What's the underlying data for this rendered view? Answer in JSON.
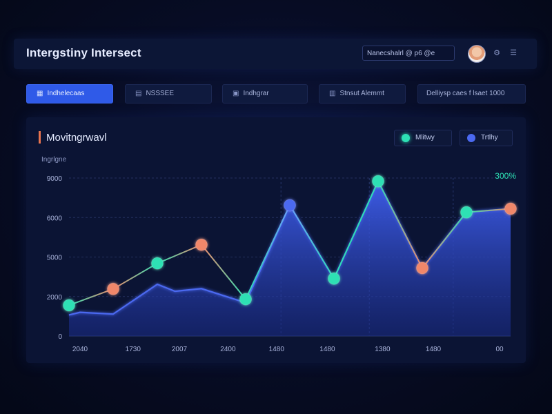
{
  "header": {
    "title": "Intergstiny Intersect",
    "search_value": "Nanecshalrl @ p6 @e",
    "icons": [
      "user-avatar",
      "settings-icon",
      "menu-icon"
    ]
  },
  "tabs": [
    {
      "label": "Indhelecaas",
      "icon": "grid-icon",
      "active": true
    },
    {
      "label": "NSSSEE",
      "icon": "chart-icon",
      "active": false
    },
    {
      "label": "Indhgrar",
      "icon": "monitor-icon",
      "active": false
    },
    {
      "label": "Stnsut Alemmt",
      "icon": "bars-icon",
      "active": false
    },
    {
      "label": "Delliysp caes f lsaet 1000",
      "icon": "",
      "active": false
    }
  ],
  "colors": {
    "accent": "#2f5ae8",
    "teal": "#2de0b4",
    "orange": "#f0876a",
    "blue_series": "#4b69f0",
    "title_marker": "#e8744f"
  },
  "chart_data": {
    "type": "line",
    "title": "Movitngrwavl",
    "ylabel": "Ingrlgne",
    "x_tick_labels": [
      "2040",
      "1730",
      "2007",
      "2400",
      "1480",
      "1480",
      "1380",
      "1480",
      "00"
    ],
    "y_tick_labels": [
      "9000",
      "6000",
      "5000",
      "2000",
      "0"
    ],
    "ylim": [
      0,
      9000
    ],
    "grid": true,
    "legend_position": "top-right",
    "annotation": "300%",
    "series": [
      {
        "name": "Mlitwy",
        "color": "#2de0b4",
        "type": "line-with-markers",
        "points": [
          {
            "x": 0,
            "y": 1750,
            "marker": "#2de0b4"
          },
          {
            "x": 1,
            "y": 2680,
            "marker": "#f0876a"
          },
          {
            "x": 2,
            "y": 4140,
            "marker": "#2de0b4"
          },
          {
            "x": 3,
            "y": 5200,
            "marker": "#f0876a"
          },
          {
            "x": 4,
            "y": 2100,
            "marker": "#2de0b4"
          },
          {
            "x": 5,
            "y": 7450,
            "marker": "#4b69f0"
          },
          {
            "x": 6,
            "y": 3270,
            "marker": "#2de0b4"
          },
          {
            "x": 7,
            "y": 8820,
            "marker": "#2de0b4"
          },
          {
            "x": 8,
            "y": 3870,
            "marker": "#f0876a"
          },
          {
            "x": 9,
            "y": 7050,
            "marker": "#2de0b4"
          },
          {
            "x": 10,
            "y": 7250,
            "marker": "#f0876a"
          }
        ]
      },
      {
        "name": "Trtlhy",
        "color": "#4b69f0",
        "type": "area",
        "points": [
          {
            "x": 0,
            "y": 1200
          },
          {
            "x": 0.25,
            "y": 1350
          },
          {
            "x": 1,
            "y": 1250
          },
          {
            "x": 2,
            "y": 2950
          },
          {
            "x": 2.4,
            "y": 2550
          },
          {
            "x": 3,
            "y": 2700
          },
          {
            "x": 4,
            "y": 1900
          },
          {
            "x": 5,
            "y": 7450
          },
          {
            "x": 6,
            "y": 3270
          },
          {
            "x": 7,
            "y": 8820
          },
          {
            "x": 8,
            "y": 3870
          },
          {
            "x": 9,
            "y": 7050
          },
          {
            "x": 10,
            "y": 7250
          }
        ]
      }
    ]
  }
}
